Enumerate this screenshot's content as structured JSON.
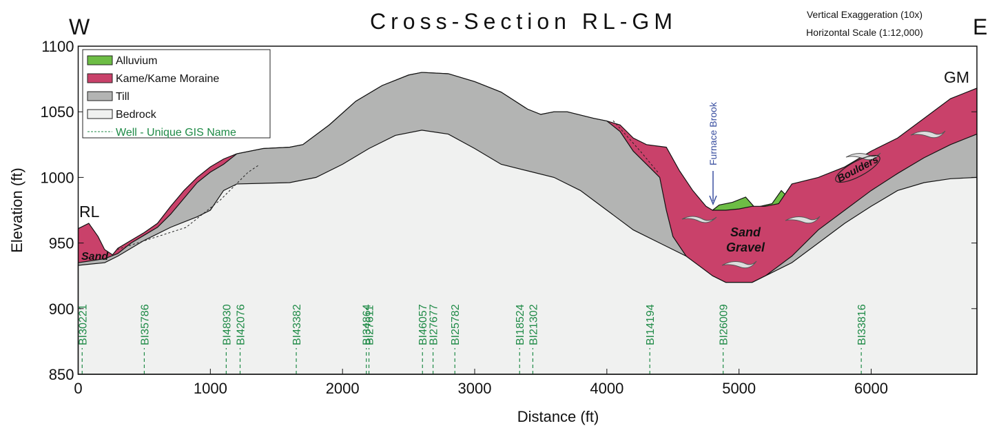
{
  "chart_data": {
    "type": "cross-section",
    "title": "Cross-Section RL-GM",
    "notes": [
      "Vertical Exaggeration (10x)",
      "Horizontal Scale (1:12,000)"
    ],
    "west": "W",
    "east": "E",
    "start_label": "RL",
    "end_label": "GM",
    "xlabel": "Distance (ft)",
    "ylabel": "Elevation (ft)",
    "xlim": [
      0,
      6800
    ],
    "xticks": [
      0,
      1000,
      2000,
      3000,
      4000,
      5000,
      6000
    ],
    "ylim": [
      850,
      1100
    ],
    "yticks": [
      850,
      900,
      950,
      1000,
      1050,
      1100
    ],
    "grid": false,
    "legend": "upper left",
    "series": [
      {
        "name": "Alluvium",
        "color": "#6dbd45",
        "x": [
          4800,
          4850,
          4950,
          5050,
          5120,
          5250,
          5320,
          5380
        ],
        "values": [
          975,
          979,
          981,
          985,
          977,
          980,
          990,
          984
        ]
      },
      {
        "name": "Kame/Kame Moraine",
        "color": "#c9416a",
        "x": [
          0,
          80,
          150,
          200,
          260,
          300,
          400,
          500,
          600,
          700,
          800,
          900,
          1000,
          1100,
          1200,
          1400,
          1600,
          1700,
          1900,
          2100,
          2300,
          2500,
          2600,
          2800,
          3000,
          3200,
          3400,
          3500,
          3600,
          3700,
          3900,
          4000,
          4100,
          4200,
          4300,
          4450,
          4550,
          4650,
          4750,
          4800,
          4900,
          5000,
          5100,
          5200,
          5300,
          5400,
          5600,
          5800,
          6000,
          6200,
          6400,
          6600,
          6800
        ],
        "values": [
          961,
          965,
          955,
          945,
          941,
          946,
          952,
          958,
          965,
          978,
          990,
          1000,
          1008,
          1014,
          1018,
          1022,
          1023,
          1025,
          1040,
          1058,
          1070,
          1078,
          1080,
          1079,
          1073,
          1065,
          1052,
          1048,
          1050,
          1050,
          1045,
          1043,
          1040,
          1030,
          1025,
          1023,
          1005,
          990,
          978,
          975,
          975,
          976,
          978,
          978,
          980,
          995,
          1000,
          1008,
          1020,
          1030,
          1045,
          1060,
          1068
        ]
      },
      {
        "name": "Till",
        "color": "#b3b4b3",
        "x": [
          0,
          200,
          300,
          400,
          500,
          600,
          700,
          800,
          900,
          1000,
          1100,
          1200,
          1400,
          1600,
          1700,
          1900,
          2100,
          2300,
          2500,
          2600,
          2800,
          3000,
          3200,
          3400,
          3500,
          3600,
          3700,
          3900,
          4000,
          4100,
          4200,
          4300,
          4400,
          4450,
          4500,
          4600,
          4700,
          4800,
          4900,
          5100,
          5200,
          5400,
          5600,
          5800,
          6000,
          6200,
          6400,
          6600,
          6800
        ],
        "values": [
          935,
          938,
          942,
          950,
          956,
          962,
          972,
          984,
          996,
          1004,
          1010,
          1018,
          1022,
          1023,
          1025,
          1040,
          1058,
          1070,
          1078,
          1080,
          1079,
          1073,
          1065,
          1052,
          1048,
          1050,
          1050,
          1045,
          1043,
          1035,
          1020,
          1010,
          1000,
          975,
          955,
          940,
          930,
          922,
          920,
          920,
          925,
          940,
          960,
          975,
          990,
          1003,
          1015,
          1025,
          1033
        ]
      },
      {
        "name": "Bedrock",
        "color": "#f0f1f0",
        "x": [
          0,
          200,
          300,
          500,
          700,
          900,
          1000,
          1100,
          1200,
          1600,
          1800,
          2000,
          2200,
          2400,
          2600,
          2800,
          3000,
          3200,
          3400,
          3600,
          3800,
          4000,
          4200,
          4400,
          4600,
          4800,
          4900,
          5100,
          5200,
          5400,
          5600,
          5800,
          6000,
          6200,
          6400,
          6600,
          6800
        ],
        "values": [
          933,
          935,
          940,
          952,
          962,
          970,
          975,
          990,
          995,
          996,
          1000,
          1010,
          1022,
          1032,
          1036,
          1033,
          1022,
          1010,
          1005,
          1000,
          990,
          975,
          960,
          950,
          940,
          925,
          920,
          920,
          925,
          935,
          950,
          965,
          978,
          990,
          996,
          999,
          1000
        ]
      }
    ],
    "well_legend": "Well - Unique GIS Name",
    "wells": [
      {
        "name": "BI30221",
        "x": 30
      },
      {
        "name": "BI35786",
        "x": 500
      },
      {
        "name": "BI48930",
        "x": 1120
      },
      {
        "name": "BI42076",
        "x": 1225
      },
      {
        "name": "BI43382",
        "x": 1650
      },
      {
        "name": "BI34864",
        "x": 2180
      },
      {
        "name": "BI27611",
        "x": 2200
      },
      {
        "name": "BI46057",
        "x": 2605
      },
      {
        "name": "BI27677",
        "x": 2685
      },
      {
        "name": "BI25782",
        "x": 2850
      },
      {
        "name": "BI18524",
        "x": 3340
      },
      {
        "name": "BI21302",
        "x": 3440
      },
      {
        "name": "BI14194",
        "x": 4325
      },
      {
        "name": "BI26009",
        "x": 4880
      },
      {
        "name": "BI33816",
        "x": 5925
      }
    ],
    "annotations": {
      "brook": "Furnace Brook",
      "sand_left": "Sand",
      "sand": "Sand",
      "gravel": "Gravel",
      "boulders": "Boulders"
    }
  }
}
